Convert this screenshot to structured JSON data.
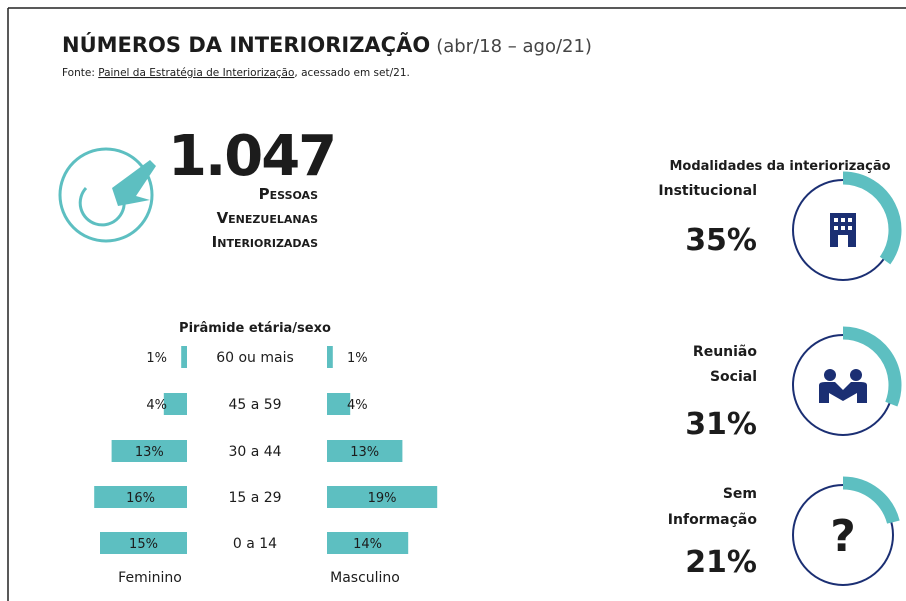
{
  "header": {
    "title": "NÚMEROS DA INTERIORIZAÇÃO",
    "period": "(abr/18 – ago/21)",
    "source_prefix": "Fonte: ",
    "source_link": "Painel da Estratégia de Interiorização",
    "source_suffix": ", acessado em set/21."
  },
  "total": {
    "number": "1.047",
    "lines": [
      "Pessoas",
      "Venezuelanas",
      "Interiorizadas"
    ]
  },
  "chart_data": {
    "type": "bar",
    "title": "Pirâmide etária/sexo",
    "categories": [
      "60 ou mais",
      "45 a 59",
      "30 a 44",
      "15 a 29",
      "0 a 14"
    ],
    "series": [
      {
        "name": "Feminino",
        "color": "#5dbfc1",
        "values": [
          1,
          4,
          13,
          16,
          15
        ],
        "value_labels": [
          "1%",
          "4%",
          "13%",
          "16%",
          "15%"
        ]
      },
      {
        "name": "Masculino",
        "color": "#5dbfc1",
        "values": [
          1,
          4,
          13,
          19,
          14
        ],
        "value_labels": [
          "1%",
          "4%",
          "13%",
          "19%",
          "14%"
        ]
      }
    ]
  },
  "modalities": {
    "type": "ring",
    "title": "Modalidades da interiorização",
    "color": "#5dbfc1",
    "items": [
      {
        "label": [
          "Institucional"
        ],
        "value": 35,
        "value_label": "35%"
      },
      {
        "label": [
          "Reunião",
          "Social"
        ],
        "value": 31,
        "value_label": "31%"
      },
      {
        "label": [
          "Sem",
          "Informação"
        ],
        "value": 21,
        "value_label": "21%"
      }
    ]
  }
}
